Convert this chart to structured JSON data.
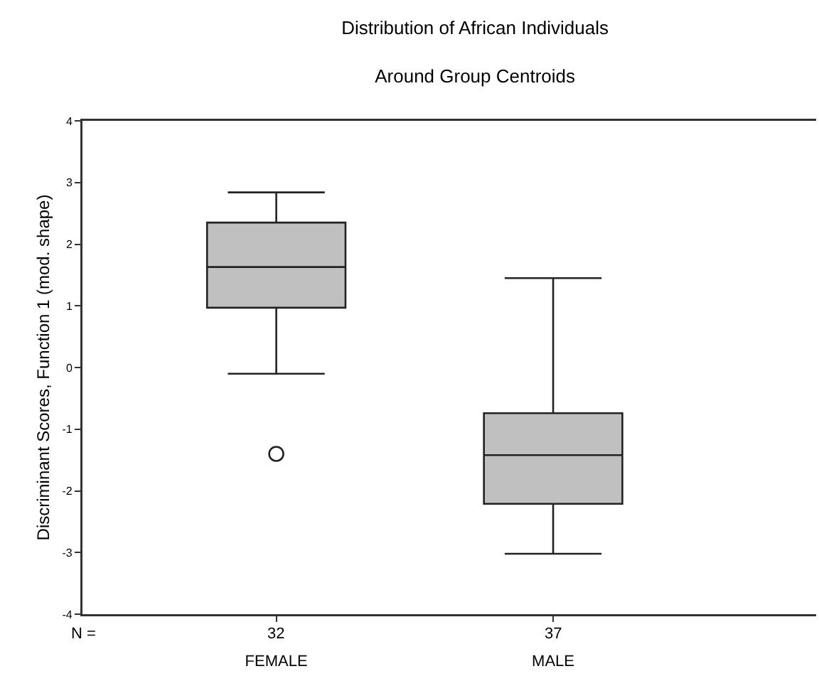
{
  "chart_data": {
    "type": "box",
    "title": "Distribution of African Individuals\nAround Group Centroids",
    "ylabel": "Discriminant Scores, Function 1 (mod. shape)",
    "categories": [
      "FEMALE",
      "MALE"
    ],
    "boxes": [
      {
        "low": -0.1,
        "q1": 0.97,
        "median": 1.63,
        "q3": 2.35,
        "high": 2.84,
        "outliers": [
          -1.4
        ]
      },
      {
        "low": -3.02,
        "q1": -2.21,
        "median": -1.42,
        "q3": -0.74,
        "high": 1.45
      }
    ],
    "color": "#c0c0c0",
    "ylim": [
      -4,
      4
    ],
    "yticks": [
      -4,
      -3,
      -2,
      -1,
      0,
      1,
      2,
      3,
      4
    ],
    "annotations": [
      "N =",
      "32",
      "37"
    ]
  }
}
